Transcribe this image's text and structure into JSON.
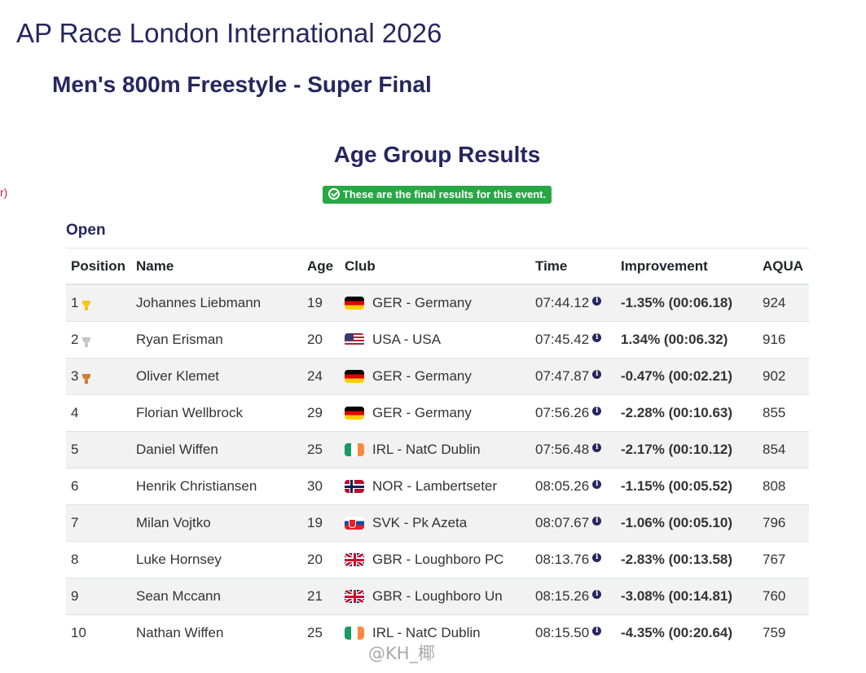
{
  "meet_title": "AP Race London International 2026",
  "event_title": "Men's 800m Freestyle - Super Final",
  "left_fragment": "r)",
  "section_title": "Age Group Results",
  "final_badge": {
    "icon": "check-circle-icon",
    "text": "These are the final results for this event.",
    "color": "#28a745"
  },
  "group_label": "Open",
  "table": {
    "headers": {
      "position": "Position",
      "name": "Name",
      "age": "Age",
      "club": "Club",
      "time": "Time",
      "improvement": "Improvement",
      "aqua": "AQUA"
    },
    "rows": [
      {
        "position": "1",
        "trophy": "gold",
        "name": "Johannes Liebmann",
        "age": "19",
        "flag": "ger",
        "club": "GER - Germany",
        "time": "07:44.12",
        "improvement": "-1.35% (00:06.18)",
        "improvement_sign": "neg",
        "aqua": "924"
      },
      {
        "position": "2",
        "trophy": "silver",
        "name": "Ryan Erisman",
        "age": "20",
        "flag": "usa",
        "club": "USA - USA",
        "time": "07:45.42",
        "improvement": "1.34% (00:06.32)",
        "improvement_sign": "pos",
        "aqua": "916"
      },
      {
        "position": "3",
        "trophy": "bronze",
        "name": "Oliver Klemet",
        "age": "24",
        "flag": "ger",
        "club": "GER - Germany",
        "time": "07:47.87",
        "improvement": "-0.47% (00:02.21)",
        "improvement_sign": "neg",
        "aqua": "902"
      },
      {
        "position": "4",
        "trophy": "",
        "name": "Florian Wellbrock",
        "age": "29",
        "flag": "ger",
        "club": "GER - Germany",
        "time": "07:56.26",
        "improvement": "-2.28% (00:10.63)",
        "improvement_sign": "neg",
        "aqua": "855"
      },
      {
        "position": "5",
        "trophy": "",
        "name": "Daniel Wiffen",
        "age": "25",
        "flag": "irl",
        "club": "IRL - NatC Dublin",
        "time": "07:56.48",
        "improvement": "-2.17% (00:10.12)",
        "improvement_sign": "neg",
        "aqua": "854"
      },
      {
        "position": "6",
        "trophy": "",
        "name": "Henrik Christiansen",
        "age": "30",
        "flag": "nor",
        "club": "NOR - Lambertseter",
        "time": "08:05.26",
        "improvement": "-1.15% (00:05.52)",
        "improvement_sign": "neg",
        "aqua": "808"
      },
      {
        "position": "7",
        "trophy": "",
        "name": "Milan Vojtko",
        "age": "19",
        "flag": "svk",
        "club": "SVK - Pk Azeta",
        "time": "08:07.67",
        "improvement": "-1.06% (00:05.10)",
        "improvement_sign": "neg",
        "aqua": "796"
      },
      {
        "position": "8",
        "trophy": "",
        "name": "Luke Hornsey",
        "age": "20",
        "flag": "gbr",
        "club": "GBR - Loughboro PC",
        "time": "08:13.76",
        "improvement": "-2.83% (00:13.58)",
        "improvement_sign": "neg",
        "aqua": "767"
      },
      {
        "position": "9",
        "trophy": "",
        "name": "Sean Mccann",
        "age": "21",
        "flag": "gbr",
        "club": "GBR - Loughboro Un",
        "time": "08:15.26",
        "improvement": "-3.08% (00:14.81)",
        "improvement_sign": "neg",
        "aqua": "760"
      },
      {
        "position": "10",
        "trophy": "",
        "name": "Nathan Wiffen",
        "age": "25",
        "flag": "irl",
        "club": "IRL - NatC Dublin",
        "time": "08:15.50",
        "improvement": "-4.35% (00:20.64)",
        "improvement_sign": "neg",
        "aqua": "759"
      }
    ]
  },
  "colors": {
    "heading": "#25275e",
    "negative": "#c9314a",
    "positive": "#2aa043",
    "stripe": "#f2f2f2"
  },
  "watermark": "@KH_椰"
}
